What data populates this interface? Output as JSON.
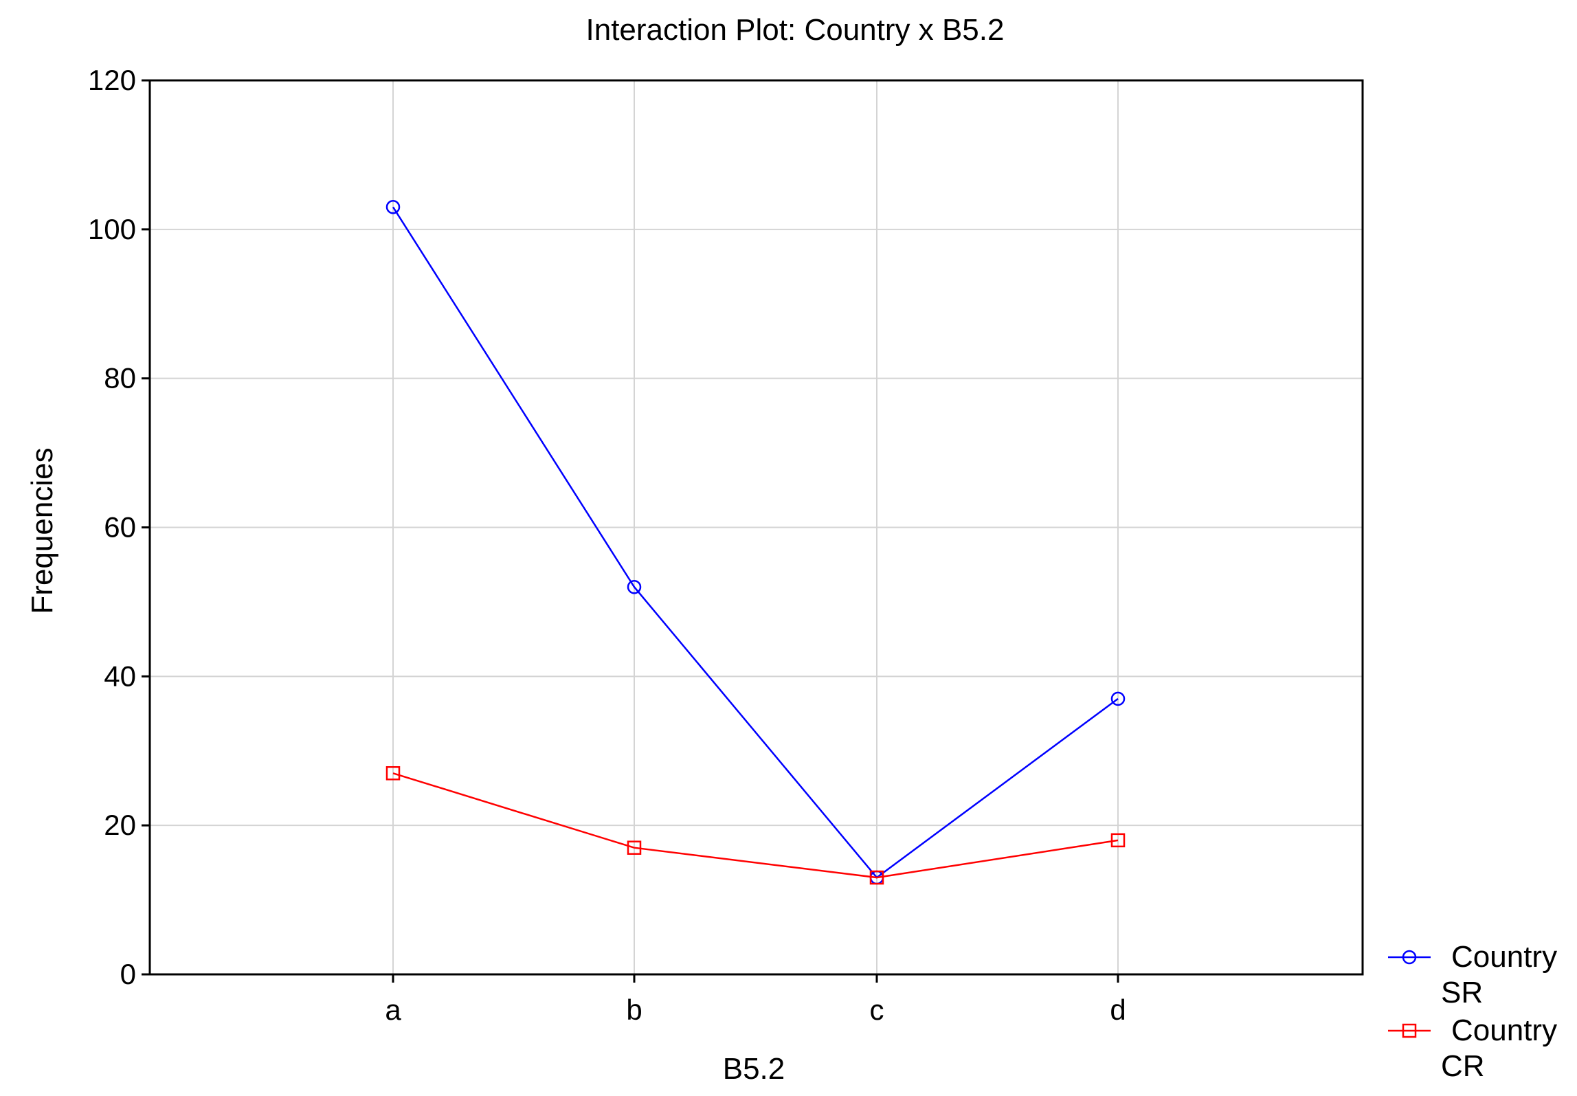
{
  "chart_data": {
    "type": "line",
    "title": "Interaction Plot: Country x B5.2",
    "xlabel": "B5.2",
    "ylabel": "Frequencies",
    "categories": [
      "a",
      "b",
      "c",
      "d"
    ],
    "ylim": [
      0,
      120
    ],
    "yticks": [
      0,
      20,
      40,
      60,
      80,
      100,
      120
    ],
    "grid": true,
    "legend_position": "bottom-right, outside plot",
    "series": [
      {
        "name": "Country SR",
        "name_lines": [
          "Country",
          "SR"
        ],
        "values": [
          103,
          52,
          13,
          37
        ],
        "color": "#0000ff",
        "marker": "circle"
      },
      {
        "name": "Country CR",
        "name_lines": [
          "Country",
          "CR"
        ],
        "values": [
          27,
          17,
          13,
          18
        ],
        "color": "#ff0000",
        "marker": "square"
      }
    ]
  }
}
